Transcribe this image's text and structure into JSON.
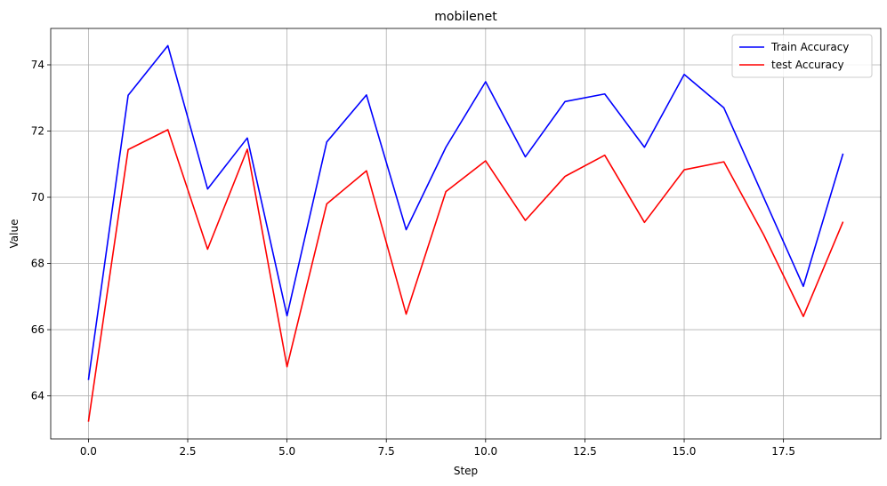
{
  "chart_data": {
    "type": "line",
    "title": "mobilenet",
    "xlabel": "Step",
    "ylabel": "Value",
    "x": [
      0,
      1,
      2,
      3,
      4,
      5,
      6,
      7,
      8,
      9,
      10,
      11,
      12,
      13,
      14,
      15,
      16,
      17,
      18,
      19
    ],
    "xlim": [
      -0.95,
      19.95
    ],
    "ylim": [
      62.7,
      75.1
    ],
    "xticks": [
      0.0,
      2.5,
      5.0,
      7.5,
      10.0,
      12.5,
      15.0,
      17.5
    ],
    "xtick_labels": [
      "0.0",
      "2.5",
      "5.0",
      "7.5",
      "10.0",
      "12.5",
      "15.0",
      "17.5"
    ],
    "yticks": [
      64,
      66,
      68,
      70,
      72,
      74
    ],
    "ytick_labels": [
      "64",
      "66",
      "68",
      "70",
      "72",
      "74"
    ],
    "grid": true,
    "legend_position": "top-right",
    "series": [
      {
        "name": "Train Accuracy",
        "color": "#0000ff",
        "values": [
          64.48,
          73.08,
          74.58,
          70.25,
          71.79,
          66.42,
          71.67,
          73.09,
          69.02,
          71.51,
          73.49,
          71.22,
          72.89,
          73.12,
          71.51,
          73.71,
          72.7,
          70.0,
          67.31,
          71.32
        ]
      },
      {
        "name": "test Accuracy",
        "color": "#ff0000",
        "values": [
          63.22,
          71.44,
          72.04,
          68.43,
          71.45,
          64.88,
          69.8,
          70.8,
          66.47,
          70.17,
          71.1,
          69.3,
          70.63,
          71.27,
          69.24,
          70.83,
          71.07,
          68.87,
          66.4,
          69.26
        ]
      }
    ]
  }
}
